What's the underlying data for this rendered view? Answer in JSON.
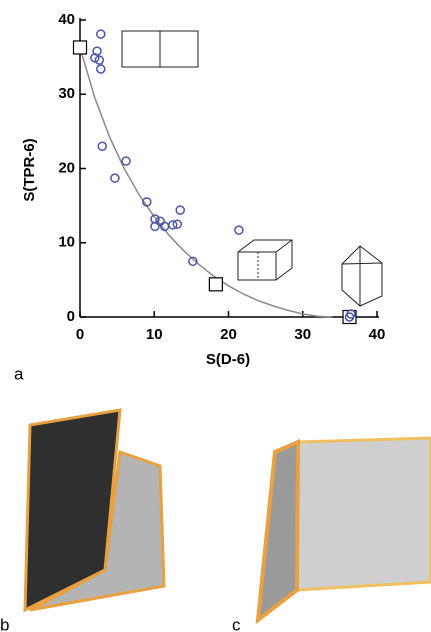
{
  "chart_data": {
    "type": "scatter",
    "x_label": "S(D-6)",
    "y_label": "S(TPR-6)",
    "xlim": [
      0,
      40
    ],
    "ylim": [
      0,
      40
    ],
    "xticks": [
      0,
      10,
      20,
      30,
      40
    ],
    "yticks": [
      0,
      10,
      20,
      30,
      40
    ],
    "x": [
      2.8,
      2.3,
      2.0,
      2.6,
      2.8,
      3.0,
      4.7,
      6.2,
      9.0,
      10.1,
      10.8,
      10.1,
      11.4,
      12.5,
      13.1,
      13.5,
      15.2,
      21.4,
      36.5,
      36.3
    ],
    "values": [
      38.1,
      35.8,
      34.9,
      34.6,
      33.4,
      23.0,
      18.7,
      21.0,
      15.5,
      13.2,
      12.9,
      12.2,
      12.2,
      12.4,
      12.5,
      14.4,
      7.5,
      11.7,
      0.4,
      0
    ],
    "color": "#4a55a8",
    "curve": {
      "x": [
        0,
        2,
        4,
        6,
        8,
        10,
        12,
        14,
        16,
        18,
        20,
        22,
        24,
        26,
        28,
        30,
        32,
        34
      ],
      "values": [
        36.3,
        29.5,
        24.2,
        19.9,
        16.4,
        13.5,
        11.0,
        8.9,
        7.1,
        5.5,
        4.2,
        3.1,
        2.2,
        1.5,
        0.9,
        0.4,
        0.1,
        0
      ],
      "color": "#8a8a8a"
    },
    "markers": {
      "x": [
        0,
        18.3,
        36.3
      ],
      "values": [
        36.3,
        4.4,
        0
      ]
    }
  },
  "panels": [
    "a",
    "b",
    "c"
  ]
}
